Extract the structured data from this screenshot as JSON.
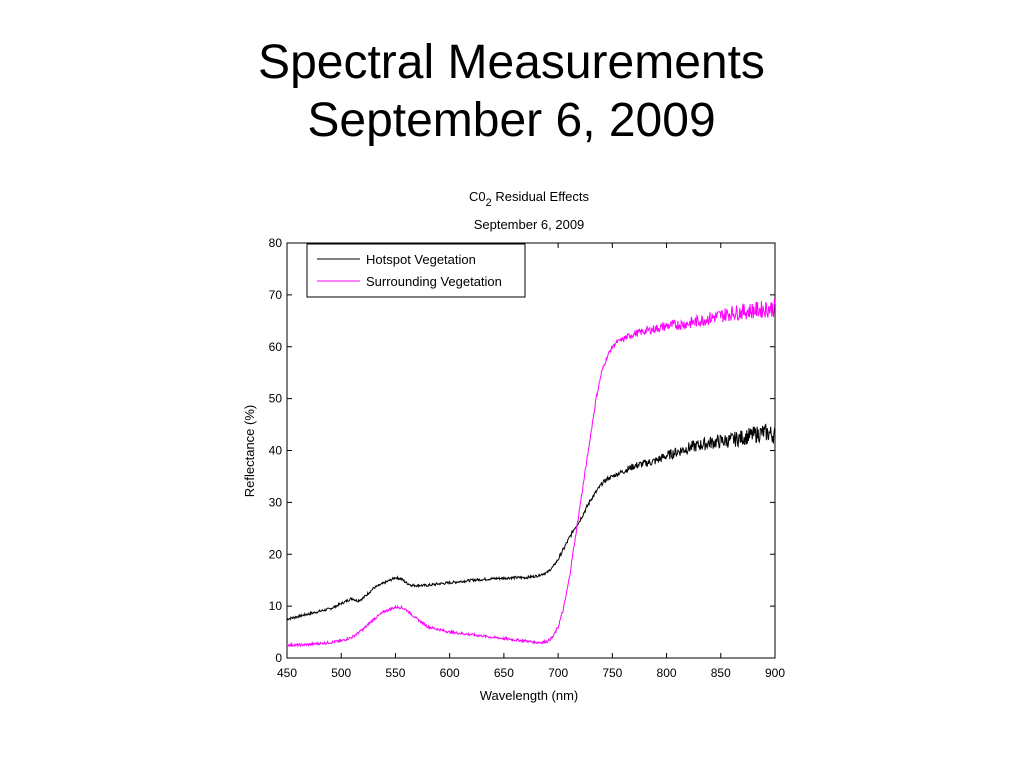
{
  "slide": {
    "title_line1": "Spectral Measurements",
    "title_line2": "September 6, 2009"
  },
  "chart_data": {
    "type": "line",
    "title": {
      "main": "C0",
      "subscript": "2",
      "suffix": " Residual Effects"
    },
    "subtitle": "September 6, 2009",
    "xlabel": "Wavelength (nm)",
    "ylabel": "Reflectance (%)",
    "xlim": [
      450,
      900
    ],
    "ylim": [
      0,
      80
    ],
    "xticks": [
      450,
      500,
      550,
      600,
      650,
      700,
      750,
      800,
      850,
      900
    ],
    "yticks": [
      0,
      10,
      20,
      30,
      40,
      50,
      60,
      70,
      80
    ],
    "grid": false,
    "legend_position": "top-left",
    "series": [
      {
        "name": "Hotspot Vegetation",
        "color": "#000000",
        "x": [
          450,
          460,
          470,
          480,
          490,
          500,
          505,
          510,
          515,
          520,
          525,
          530,
          535,
          540,
          545,
          550,
          555,
          560,
          565,
          570,
          580,
          590,
          600,
          620,
          640,
          660,
          670,
          680,
          690,
          695,
          700,
          705,
          710,
          715,
          720,
          725,
          730,
          735,
          740,
          745,
          750,
          760,
          770,
          780,
          790,
          800,
          820,
          840,
          860,
          880,
          890,
          900
        ],
        "y": [
          7.5,
          8.0,
          8.5,
          9.0,
          9.5,
          10.5,
          11.0,
          11.5,
          11.0,
          11.5,
          12.5,
          13.5,
          14.0,
          14.5,
          15.0,
          15.5,
          15.3,
          14.5,
          14.0,
          14.0,
          14.0,
          14.3,
          14.5,
          15.0,
          15.3,
          15.5,
          15.5,
          15.8,
          16.5,
          17.5,
          19.0,
          21.0,
          23.0,
          25.0,
          26.5,
          28.5,
          30.5,
          32.0,
          33.5,
          34.5,
          35.0,
          36.0,
          37.0,
          37.5,
          38.0,
          39.0,
          40.5,
          41.5,
          42.0,
          43.0,
          43.5,
          43.0
        ]
      },
      {
        "name": "Surrounding Vegetation",
        "color": "#ff00ff",
        "x": [
          450,
          460,
          470,
          480,
          490,
          500,
          510,
          520,
          530,
          540,
          550,
          555,
          560,
          570,
          580,
          590,
          600,
          620,
          640,
          660,
          670,
          680,
          685,
          690,
          695,
          700,
          705,
          710,
          715,
          720,
          725,
          730,
          735,
          740,
          745,
          750,
          755,
          760,
          770,
          780,
          800,
          820,
          840,
          860,
          880,
          900
        ],
        "y": [
          2.5,
          2.5,
          2.6,
          2.8,
          3.0,
          3.3,
          4.0,
          5.5,
          7.5,
          9.0,
          9.8,
          9.8,
          9.3,
          7.5,
          6.0,
          5.5,
          5.0,
          4.5,
          4.0,
          3.5,
          3.3,
          3.0,
          3.0,
          3.2,
          4.0,
          6.0,
          9.5,
          15.0,
          22.0,
          29.0,
          36.0,
          43.0,
          50.0,
          55.0,
          58.0,
          60.0,
          61.0,
          61.5,
          62.5,
          63.0,
          64.0,
          64.5,
          65.5,
          66.5,
          67.0,
          67.5
        ]
      }
    ]
  }
}
